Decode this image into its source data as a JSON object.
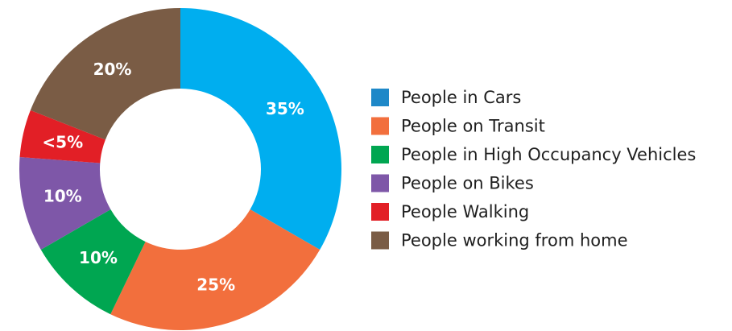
{
  "chart_data": {
    "type": "pie",
    "donut": true,
    "categories": [
      "People in Cars",
      "People on Transit",
      "People in High Occupancy Vehicles",
      "People on Bikes",
      "People Walking",
      "People working from home"
    ],
    "values": [
      35,
      25,
      10,
      10,
      5,
      20
    ],
    "value_labels": [
      "35%",
      "25%",
      "10%",
      "10%",
      "<5%",
      "20%"
    ],
    "colors": [
      "#00aeef",
      "#f26f3d",
      "#00a651",
      "#7e57a8",
      "#e21f26",
      "#7a5c45"
    ],
    "legend_colors": [
      "#1e88c8",
      "#f26f3d",
      "#00a651",
      "#7e57a8",
      "#e21f26",
      "#7a5c45"
    ],
    "legend_placement": "right"
  }
}
